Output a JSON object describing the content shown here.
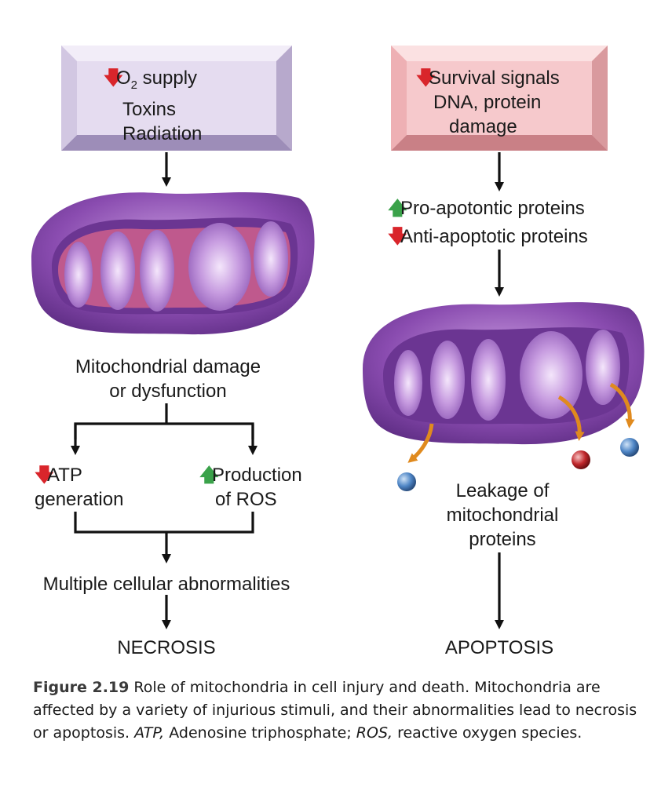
{
  "left": {
    "box_lines": [
      "O",
      "2",
      " supply",
      "Toxins",
      "Radiation"
    ],
    "mito_label": [
      "Mitochondrial damage",
      "or dysfunction"
    ],
    "branch_left": [
      "ATP",
      "generation"
    ],
    "branch_right": [
      "Production",
      "of ROS"
    ],
    "result": "Multiple cellular abnormalities",
    "outcome": "NECROSIS"
  },
  "right": {
    "box_lines": [
      "Survival signals",
      "DNA, protein",
      "damage"
    ],
    "pro": "Pro-apotontic proteins",
    "anti": "Anti-apoptotic proteins",
    "leak": [
      "Leakage of",
      "mitochondrial",
      "proteins"
    ],
    "outcome": "APOPTOSIS"
  },
  "caption": {
    "figure": "Figure 2.19",
    "text1": " Role of mitochondria in cell injury and death. Mitochondria are affected by a variety of injurious stimuli, and their abnormalities lead to necrosis or apoptosis. ",
    "atp_abbr": "ATP,",
    "atp_def": " Adenosine triphosphate; ",
    "ros_abbr": "ROS,",
    "ros_def": " reactive oxygen species."
  },
  "colors": {
    "left_box": "#e2d9ee",
    "right_box": "#f4c3c6",
    "up_arrow": "#3aa24a",
    "down_arrow": "#d9252b",
    "mito_purple": "#8b4fb0",
    "leak_arrow": "#f0a030",
    "protein_blue": "#4f86c6",
    "protein_red": "#c0262b"
  }
}
